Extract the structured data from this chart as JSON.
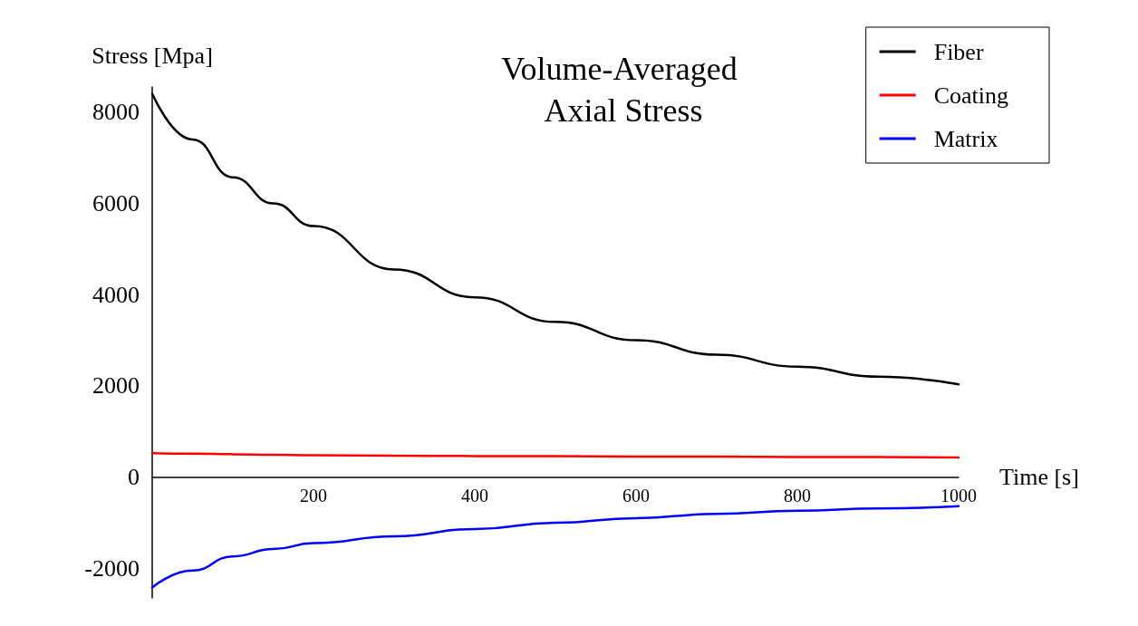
{
  "chart_data": {
    "type": "line",
    "title": "Volume-Averaged Axial Stress",
    "xlabel": "Time [s]",
    "ylabel": "Stress [Mpa]",
    "x": [
      0,
      50,
      100,
      150,
      200,
      300,
      400,
      500,
      600,
      700,
      800,
      900,
      1000
    ],
    "series": [
      {
        "name": "Fiber",
        "color": "#000000",
        "values": [
          8400,
          7400,
          6570,
          6000,
          5500,
          4550,
          3940,
          3400,
          3000,
          2680,
          2420,
          2200,
          2030
        ]
      },
      {
        "name": "Coating",
        "color": "#ff0000",
        "values": [
          520,
          510,
          500,
          490,
          480,
          470,
          460,
          460,
          450,
          450,
          440,
          440,
          430
        ]
      },
      {
        "name": "Matrix",
        "color": "#0000ff",
        "values": [
          -2420,
          -2050,
          -1740,
          -1580,
          -1450,
          -1300,
          -1140,
          -1000,
          -900,
          -810,
          -740,
          -690,
          -640
        ]
      }
    ],
    "xlim": [
      0,
      1000
    ],
    "xticks": [
      200,
      400,
      600,
      800,
      1000
    ],
    "ylim": [
      -2650,
      8550
    ],
    "yticks": [
      -2000,
      0,
      2000,
      4000,
      6000,
      8000
    ],
    "grid": false,
    "legend": "top right",
    "marker": "none",
    "line_style": "solid"
  }
}
